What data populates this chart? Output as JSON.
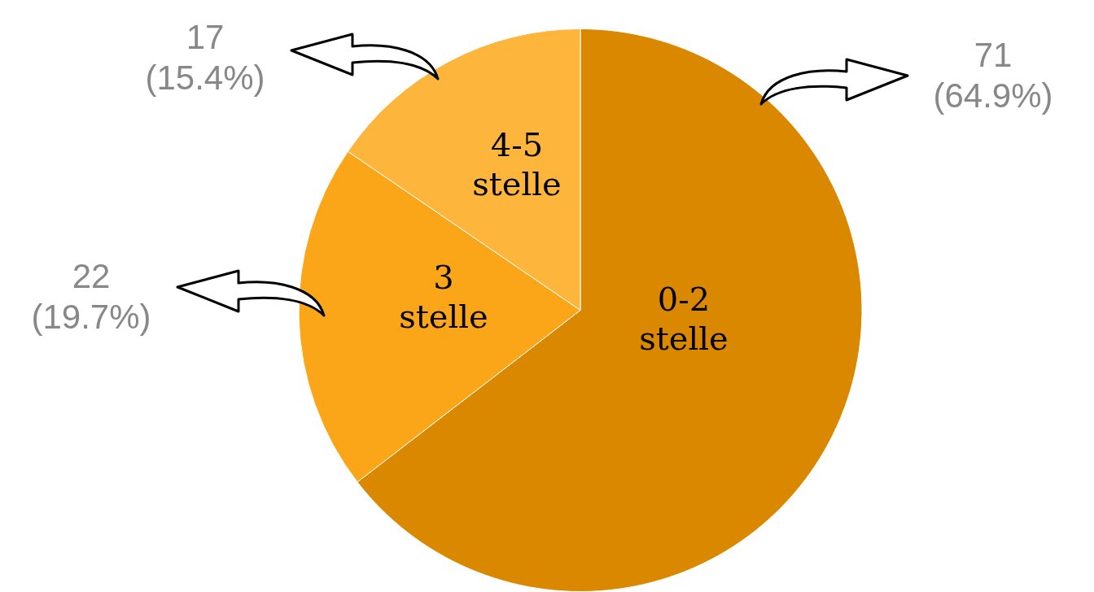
{
  "chart_data": {
    "type": "pie",
    "categories": [
      "0-2 stelle",
      "3 stelle",
      "4-5 stelle"
    ],
    "values": [
      71,
      22,
      17
    ],
    "colors": [
      "#d98800",
      "#fba518",
      "#fdb53c"
    ],
    "value_labels": [
      "71 (64.9%)",
      "22 (19.7%)",
      "17 (15.4%)"
    ],
    "legend": false
  }
}
